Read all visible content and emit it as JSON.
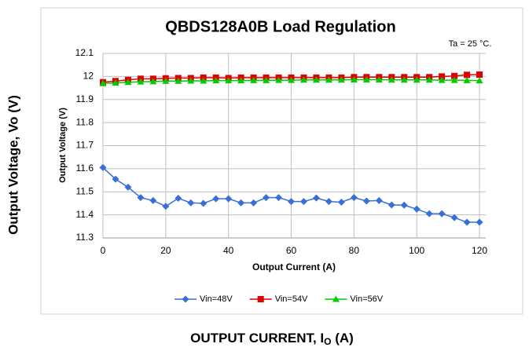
{
  "chart_data": {
    "type": "line",
    "title": "QBDS128A0B Load Regulation",
    "annotation": "Ta = 25 °C.",
    "xlabel": "Output Current (A)",
    "ylabel": "Output Voltage (V)",
    "outer_ylabel": "Output Voltage, Vo  (V)",
    "outer_xlabel": {
      "main": "OUTPUT CURRENT, I",
      "sub": "O",
      "end": " (A)"
    },
    "x": [
      0,
      4,
      8,
      12,
      16,
      20,
      24,
      28,
      32,
      36,
      40,
      44,
      48,
      52,
      56,
      60,
      64,
      68,
      72,
      76,
      80,
      84,
      88,
      92,
      96,
      100,
      104,
      108,
      112,
      116,
      120
    ],
    "series": [
      {
        "name": "Vin=48V",
        "color": "#3a6fd8",
        "marker": "diamond",
        "values": [
          11.605,
          11.555,
          11.52,
          11.475,
          11.462,
          11.437,
          11.472,
          11.452,
          11.45,
          11.47,
          11.47,
          11.452,
          11.452,
          11.475,
          11.475,
          11.458,
          11.458,
          11.473,
          11.458,
          11.455,
          11.475,
          11.46,
          11.462,
          11.443,
          11.442,
          11.425,
          11.405,
          11.405,
          11.388,
          11.368,
          11.368
        ]
      },
      {
        "name": "Vin=54V",
        "color": "#e00000",
        "marker": "square",
        "values": [
          11.975,
          11.98,
          11.985,
          11.99,
          11.99,
          11.992,
          11.993,
          11.993,
          11.995,
          11.995,
          11.993,
          11.995,
          11.995,
          11.995,
          11.995,
          11.995,
          11.995,
          11.995,
          11.995,
          11.995,
          11.997,
          11.997,
          11.997,
          11.997,
          11.997,
          11.997,
          11.997,
          12.0,
          12.002,
          12.007,
          12.008
        ]
      },
      {
        "name": "Vin=56V",
        "color": "#00cc00",
        "marker": "triangle",
        "values": [
          11.97,
          11.972,
          11.975,
          11.977,
          11.978,
          11.98,
          11.98,
          11.981,
          11.981,
          11.982,
          11.982,
          11.982,
          11.983,
          11.983,
          11.984,
          11.984,
          11.985,
          11.985,
          11.985,
          11.985,
          11.986,
          11.986,
          11.986,
          11.985,
          11.985,
          11.985,
          11.985,
          11.984,
          11.984,
          11.983,
          11.982
        ]
      }
    ],
    "xlim": [
      0,
      122
    ],
    "xticks": [
      0,
      20,
      40,
      60,
      80,
      100,
      120
    ],
    "ylim": [
      11.3,
      12.1
    ],
    "yticks": [
      11.3,
      11.4,
      11.5,
      11.6,
      11.7,
      11.8,
      11.9,
      12,
      12.1
    ],
    "grid": true,
    "legend": "bottom"
  }
}
